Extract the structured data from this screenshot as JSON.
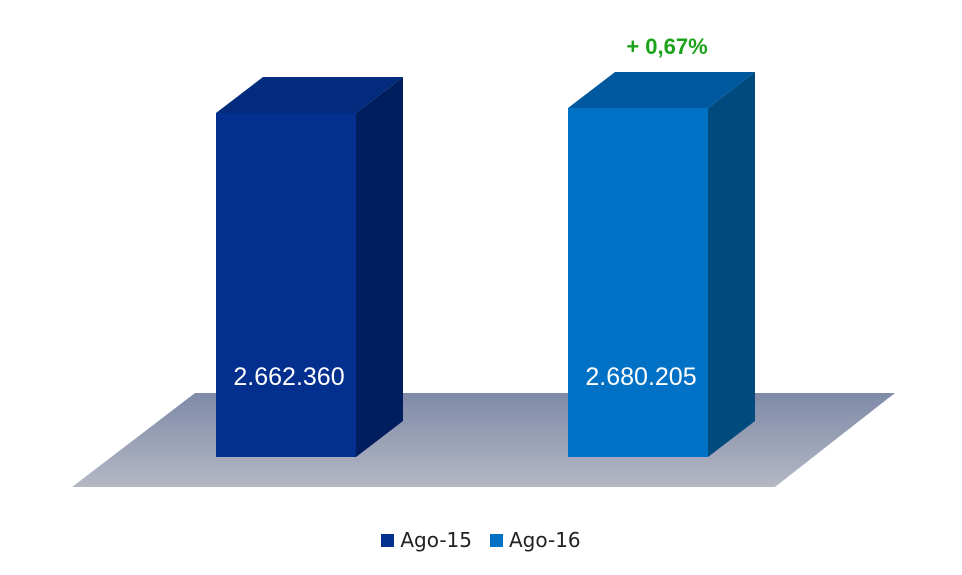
{
  "chart_data": {
    "type": "bar",
    "categories": [
      "Ago-15",
      "Ago-16"
    ],
    "values": [
      2662360,
      2680205
    ],
    "value_labels": [
      "2.662.360",
      "2.680.205"
    ],
    "annotation": "+ 0,67%",
    "legend_position": "bottom",
    "grid": false,
    "colors": {
      "Ago-15": {
        "front": "#03308f",
        "side": "#001d5e",
        "top": "#022a7d"
      },
      "Ago-16": {
        "front": "#0071c4",
        "side": "#004a7e",
        "top": "#00599e"
      },
      "floor": "#a9afbe",
      "annotation": "#1aa31a"
    }
  }
}
